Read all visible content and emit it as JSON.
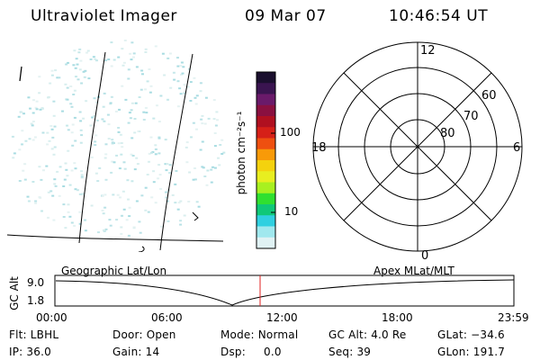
{
  "header": {
    "instrument": "Ultraviolet Imager",
    "date": "09 Mar 07",
    "time": "10:46:54 UT"
  },
  "colorbar": {
    "unit_label": "photon cm⁻²s⁻¹",
    "tick_labels": [
      "100",
      "10"
    ],
    "colors": [
      "#1a0f2e",
      "#3a1450",
      "#6a1a6a",
      "#8a1040",
      "#b01020",
      "#d62018",
      "#ee5010",
      "#f89a08",
      "#f4d20e",
      "#e8ee20",
      "#a8f020",
      "#30e030",
      "#10c878",
      "#30d0e0",
      "#a0e8ee",
      "#e0f2f4"
    ]
  },
  "polar_plot": {
    "labels": {
      "top": "12",
      "bottom": "0",
      "left": "18",
      "right": "6",
      "lat60": "60",
      "lat70": "70",
      "lat80": "80"
    }
  },
  "panels": {
    "left_label": "Geographic Lat/Lon",
    "right_label": "Apex MLat/MLT"
  },
  "altitude_plot": {
    "ylabel": "GC Alt",
    "y_ticks": [
      "9.0",
      "1.8"
    ],
    "x_ticks": [
      "00:00",
      "06:00",
      "12:00",
      "18:00",
      "23:59"
    ],
    "line_color": "#000000",
    "marker_color": "#e02020"
  },
  "info": {
    "flt": "Flt: LBHL",
    "ip": "IP: 36.0",
    "door": "Door: Open",
    "gain": "Gain: 14",
    "mode": "Mode: Normal",
    "dsp": "Dsp:     0.0",
    "gc_alt": "GC Alt: 4.0 Re",
    "seq": "Seq: 39",
    "glat": "GLat: −34.6",
    "glon": "GLon: 191.7"
  }
}
